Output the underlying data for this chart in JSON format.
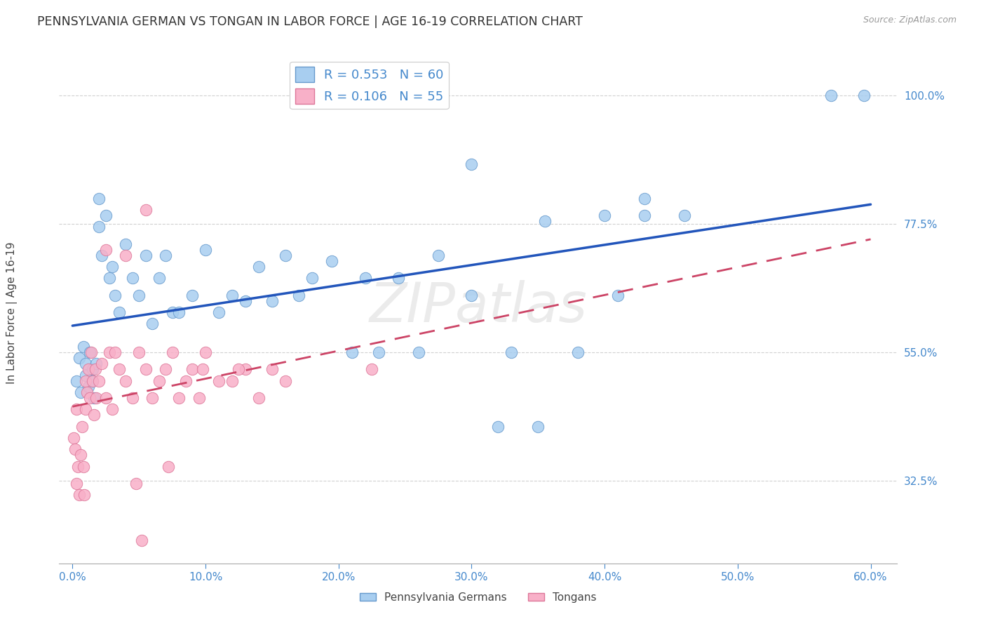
{
  "title": "PENNSYLVANIA GERMAN VS TONGAN IN LABOR FORCE | AGE 16-19 CORRELATION CHART",
  "source": "Source: ZipAtlas.com",
  "ylabel": "In Labor Force | Age 16-19",
  "x_ticklabels": [
    "0.0%",
    "10.0%",
    "20.0%",
    "30.0%",
    "40.0%",
    "50.0%",
    "60.0%"
  ],
  "x_ticks": [
    0.0,
    10.0,
    20.0,
    30.0,
    40.0,
    50.0,
    60.0
  ],
  "y_ticklabels": [
    "32.5%",
    "55.0%",
    "77.5%",
    "100.0%"
  ],
  "y_ticks": [
    32.5,
    55.0,
    77.5,
    100.0
  ],
  "xlim": [
    -1.0,
    62.0
  ],
  "ylim": [
    18.0,
    108.0
  ],
  "legend_labels": [
    "Pennsylvania Germans",
    "Tongans"
  ],
  "r_pa": 0.553,
  "n_pa": 60,
  "r_to": 0.106,
  "n_to": 55,
  "blue_scatter_color": "#a8cef0",
  "blue_edge_color": "#6699cc",
  "blue_line_color": "#2255bb",
  "pink_scatter_color": "#f8b0c8",
  "pink_edge_color": "#dd7799",
  "pink_line_color": "#cc4466",
  "background_color": "#ffffff",
  "grid_color": "#cccccc",
  "label_color": "#4488cc",
  "title_color": "#333333",
  "watermark": "ZIPatlas",
  "pa_x": [
    0.3,
    0.5,
    0.6,
    0.8,
    1.0,
    1.0,
    1.2,
    1.3,
    1.5,
    1.5,
    1.6,
    1.8,
    2.0,
    2.0,
    2.2,
    2.5,
    2.8,
    3.0,
    3.2,
    3.5,
    4.0,
    4.5,
    5.0,
    5.5,
    6.0,
    6.5,
    7.0,
    7.5,
    8.0,
    9.0,
    10.0,
    11.0,
    12.0,
    13.0,
    14.0,
    15.0,
    16.0,
    17.0,
    18.0,
    19.5,
    21.0,
    22.0,
    23.0,
    24.5,
    26.0,
    27.5,
    30.0,
    32.0,
    33.0,
    35.0,
    38.0,
    41.0,
    43.0,
    46.0,
    30.0,
    35.5,
    40.0,
    43.0,
    57.0,
    59.5
  ],
  "pa_y": [
    50.0,
    54.0,
    48.0,
    56.0,
    51.0,
    53.0,
    49.0,
    55.0,
    50.0,
    52.0,
    47.0,
    53.0,
    77.0,
    82.0,
    72.0,
    79.0,
    68.0,
    70.0,
    65.0,
    62.0,
    74.0,
    68.0,
    65.0,
    72.0,
    60.0,
    68.0,
    72.0,
    62.0,
    62.0,
    65.0,
    73.0,
    62.0,
    65.0,
    64.0,
    70.0,
    64.0,
    72.0,
    65.0,
    68.0,
    71.0,
    55.0,
    68.0,
    55.0,
    68.0,
    55.0,
    72.0,
    65.0,
    42.0,
    55.0,
    42.0,
    55.0,
    65.0,
    82.0,
    79.0,
    88.0,
    78.0,
    79.0,
    79.0,
    100.0,
    100.0
  ],
  "to_x": [
    0.1,
    0.2,
    0.3,
    0.3,
    0.4,
    0.5,
    0.6,
    0.7,
    0.8,
    0.9,
    1.0,
    1.0,
    1.1,
    1.2,
    1.3,
    1.4,
    1.5,
    1.6,
    1.7,
    1.8,
    2.0,
    2.2,
    2.5,
    2.8,
    3.0,
    3.2,
    3.5,
    4.0,
    4.5,
    5.0,
    5.5,
    6.0,
    6.5,
    7.0,
    7.5,
    8.0,
    8.5,
    9.0,
    9.5,
    10.0,
    11.0,
    12.0,
    13.0,
    14.0,
    15.0,
    16.0,
    4.0,
    5.5,
    2.5,
    4.8,
    7.2,
    9.8,
    12.5,
    22.5,
    5.2
  ],
  "to_y": [
    40.0,
    38.0,
    32.0,
    45.0,
    35.0,
    30.0,
    37.0,
    42.0,
    35.0,
    30.0,
    45.0,
    50.0,
    48.0,
    52.0,
    47.0,
    55.0,
    50.0,
    44.0,
    52.0,
    47.0,
    50.0,
    53.0,
    47.0,
    55.0,
    45.0,
    55.0,
    52.0,
    50.0,
    47.0,
    55.0,
    52.0,
    47.0,
    50.0,
    52.0,
    55.0,
    47.0,
    50.0,
    52.0,
    47.0,
    55.0,
    50.0,
    50.0,
    52.0,
    47.0,
    52.0,
    50.0,
    72.0,
    80.0,
    73.0,
    32.0,
    35.0,
    52.0,
    52.0,
    52.0,
    22.0
  ]
}
